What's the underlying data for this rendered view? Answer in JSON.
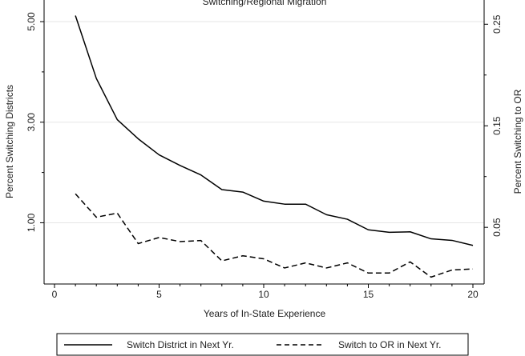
{
  "chart_data": {
    "type": "line",
    "title": "Switching/Regional Migration",
    "xlabel": "Years of In-State Experience",
    "ylabel_left": "Percent Switching Districts",
    "ylabel_right": "Percent Switching to OR",
    "x_ticks": [
      "0",
      "5",
      "10",
      "15",
      "20"
    ],
    "y_left_ticks": [
      "1.00",
      "3.00",
      "5.00"
    ],
    "y_right_ticks": [
      "0.05",
      "0.15",
      "0.25"
    ],
    "xlim": [
      0,
      20
    ],
    "ylim_left": [
      0.0,
      5.15
    ],
    "ylim_right": [
      0.005,
      0.26
    ],
    "grid": true,
    "legend_position": "bottom",
    "x": [
      1,
      2,
      3,
      4,
      5,
      6,
      7,
      8,
      9,
      10,
      11,
      12,
      13,
      14,
      15,
      16,
      17,
      18,
      19,
      20
    ],
    "series": [
      {
        "name": "Switch District in Next Yr.",
        "axis": "left",
        "style": "solid",
        "values": [
          5.12,
          3.87,
          3.05,
          2.67,
          2.35,
          2.14,
          1.95,
          1.66,
          1.61,
          1.43,
          1.37,
          1.37,
          1.16,
          1.07,
          0.86,
          0.81,
          0.82,
          0.68,
          0.65,
          0.55
        ]
      },
      {
        "name": "Switch to OR in Next Yr.",
        "axis": "right",
        "style": "dashed",
        "values": [
          0.083,
          0.06,
          0.064,
          0.034,
          0.04,
          0.036,
          0.037,
          0.017,
          0.022,
          0.019,
          0.01,
          0.015,
          0.01,
          0.015,
          0.005,
          0.005,
          0.016,
          0.001,
          0.008,
          0.009
        ]
      }
    ]
  }
}
